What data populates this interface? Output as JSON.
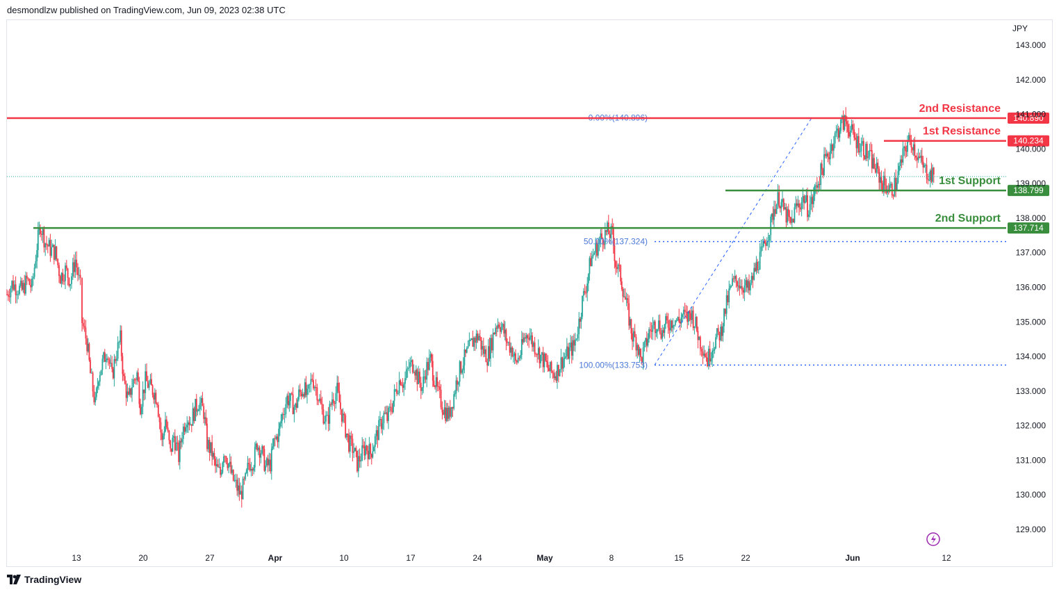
{
  "header": {
    "publish_line": "desmondlzw published on TradingView.com, Jun 09, 2023 02:38 UTC"
  },
  "footer": {
    "brand": "TradingView"
  },
  "chart_data": {
    "type": "candlestick",
    "currency": "JPY",
    "y_ticks": [
      "143.000",
      "142.000",
      "141.000",
      "140.000",
      "139.000",
      "138.000",
      "137.000",
      "136.000",
      "135.000",
      "134.000",
      "133.000",
      "132.000",
      "131.000",
      "130.000",
      "129.000"
    ],
    "x_ticks": [
      "13",
      "20",
      "27",
      "Apr",
      "10",
      "17",
      "24",
      "May",
      "8",
      "15",
      "22",
      "Jun",
      "12"
    ],
    "ylim": [
      128.5,
      143.6
    ],
    "levels": [
      {
        "label": "2nd Resistance",
        "price_tag": "140.890",
        "value": 140.89,
        "color": "#f23645"
      },
      {
        "label": "1st Resistance",
        "price_tag": "140.234",
        "value": 140.234,
        "color": "#f23645"
      },
      {
        "label": "1st Support",
        "price_tag": "138.799",
        "value": 138.799,
        "color": "#388e3c"
      },
      {
        "label": "2nd Support",
        "price_tag": "137.714",
        "value": 137.714,
        "color": "#388e3c"
      }
    ],
    "fibonacci": [
      {
        "label": "0.00%(140.896)",
        "value": 140.896
      },
      {
        "label": "50.00%(137.324)",
        "value": 137.324
      },
      {
        "label": "100.00%(133.753)",
        "value": 133.753
      }
    ],
    "last_price": 139.2,
    "colors": {
      "up": "#26a69a",
      "down": "#f23645",
      "fib": "#2962ff",
      "support": "#388e3c",
      "resistance": "#f23645"
    },
    "close_path": [
      [
        0,
        135.8
      ],
      [
        6,
        136.1
      ],
      [
        12,
        136.0
      ],
      [
        18,
        135.9
      ],
      [
        24,
        136.2
      ],
      [
        30,
        136.0
      ],
      [
        36,
        137.2
      ],
      [
        40,
        137.8
      ],
      [
        46,
        137.3
      ],
      [
        52,
        137.1
      ],
      [
        58,
        137.0
      ],
      [
        64,
        136.3
      ],
      [
        70,
        136.5
      ],
      [
        76,
        136.2
      ],
      [
        82,
        136.8
      ],
      [
        88,
        136.0
      ],
      [
        90,
        135.0
      ],
      [
        96,
        134.4
      ],
      [
        100,
        133.5
      ],
      [
        106,
        132.6
      ],
      [
        110,
        133.5
      ],
      [
        116,
        133.9
      ],
      [
        120,
        134.2
      ],
      [
        126,
        133.4
      ],
      [
        130,
        134.0
      ],
      [
        136,
        134.5
      ],
      [
        140,
        133.3
      ],
      [
        146,
        132.7
      ],
      [
        150,
        133.2
      ],
      [
        156,
        133.5
      ],
      [
        160,
        132.6
      ],
      [
        166,
        133.3
      ],
      [
        172,
        133.1
      ],
      [
        176,
        133.0
      ],
      [
        180,
        132.8
      ],
      [
        186,
        131.5
      ],
      [
        190,
        132.2
      ],
      [
        196,
        131.2
      ],
      [
        200,
        131.7
      ],
      [
        206,
        131.1
      ],
      [
        210,
        131.8
      ],
      [
        216,
        132.3
      ],
      [
        220,
        132.1
      ],
      [
        226,
        132.5
      ],
      [
        230,
        132.7
      ],
      [
        236,
        132.4
      ],
      [
        240,
        131.5
      ],
      [
        246,
        131.2
      ],
      [
        250,
        130.8
      ],
      [
        256,
        130.6
      ],
      [
        260,
        131.3
      ],
      [
        266,
        130.9
      ],
      [
        270,
        130.5
      ],
      [
        276,
        130.2
      ],
      [
        280,
        130.0
      ],
      [
        286,
        130.4
      ],
      [
        290,
        130.9
      ],
      [
        296,
        131.0
      ],
      [
        300,
        131.5
      ],
      [
        306,
        131.2
      ],
      [
        310,
        130.8
      ],
      [
        316,
        130.9
      ],
      [
        320,
        131.5
      ],
      [
        326,
        131.8
      ],
      [
        330,
        132.3
      ],
      [
        336,
        132.8
      ],
      [
        340,
        132.7
      ],
      [
        346,
        132.5
      ],
      [
        350,
        132.9
      ],
      [
        356,
        133.1
      ],
      [
        360,
        132.8
      ],
      [
        366,
        133.4
      ],
      [
        372,
        133.0
      ],
      [
        378,
        132.4
      ],
      [
        384,
        132.1
      ],
      [
        390,
        132.8
      ],
      [
        396,
        133.0
      ],
      [
        400,
        132.5
      ],
      [
        406,
        131.9
      ],
      [
        410,
        131.5
      ],
      [
        416,
        131.3
      ],
      [
        420,
        130.9
      ],
      [
        426,
        131.2
      ],
      [
        430,
        131.4
      ],
      [
        436,
        131.2
      ],
      [
        440,
        131.5
      ],
      [
        446,
        131.9
      ],
      [
        452,
        132.3
      ],
      [
        456,
        132.2
      ],
      [
        462,
        132.6
      ],
      [
        466,
        133.0
      ],
      [
        472,
        133.4
      ],
      [
        476,
        133.2
      ],
      [
        482,
        133.7
      ],
      [
        488,
        133.8
      ],
      [
        492,
        133.4
      ],
      [
        498,
        133.1
      ],
      [
        502,
        133.6
      ],
      [
        508,
        133.9
      ],
      [
        512,
        133.4
      ],
      [
        516,
        133.0
      ],
      [
        522,
        132.6
      ],
      [
        526,
        132.4
      ],
      [
        530,
        132.3
      ],
      [
        536,
        132.9
      ],
      [
        540,
        133.4
      ],
      [
        546,
        133.8
      ],
      [
        550,
        134.0
      ],
      [
        556,
        134.3
      ],
      [
        560,
        134.5
      ],
      [
        566,
        134.6
      ],
      [
        570,
        134.2
      ],
      [
        576,
        134.0
      ],
      [
        580,
        134.3
      ],
      [
        586,
        134.9
      ],
      [
        590,
        135.0
      ],
      [
        596,
        134.7
      ],
      [
        600,
        134.4
      ],
      [
        606,
        134.2
      ],
      [
        610,
        133.8
      ],
      [
        616,
        134.1
      ],
      [
        620,
        134.5
      ],
      [
        626,
        134.7
      ],
      [
        630,
        134.4
      ],
      [
        636,
        134.2
      ],
      [
        640,
        134.0
      ],
      [
        646,
        133.8
      ],
      [
        650,
        133.6
      ],
      [
        656,
        133.5
      ],
      [
        660,
        133.6
      ],
      [
        666,
        133.9
      ],
      [
        670,
        134.0
      ],
      [
        676,
        134.2
      ],
      [
        680,
        134.3
      ],
      [
        686,
        135.0
      ],
      [
        690,
        135.6
      ],
      [
        696,
        136.2
      ],
      [
        700,
        136.8
      ],
      [
        706,
        137.1
      ],
      [
        712,
        137.4
      ],
      [
        716,
        137.5
      ],
      [
        720,
        137.6
      ],
      [
        726,
        137.5
      ],
      [
        730,
        136.7
      ],
      [
        736,
        136.3
      ],
      [
        740,
        135.8
      ],
      [
        746,
        135.1
      ],
      [
        750,
        134.6
      ],
      [
        756,
        134.4
      ],
      [
        760,
        133.9
      ],
      [
        766,
        134.3
      ],
      [
        770,
        134.7
      ],
      [
        776,
        134.9
      ],
      [
        780,
        135.0
      ],
      [
        786,
        134.7
      ],
      [
        790,
        134.9
      ],
      [
        796,
        135.0
      ],
      [
        800,
        135.1
      ],
      [
        806,
        135.0
      ],
      [
        810,
        135.2
      ],
      [
        816,
        135.1
      ],
      [
        820,
        135.3
      ],
      [
        826,
        134.9
      ],
      [
        830,
        134.5
      ],
      [
        836,
        134.2
      ],
      [
        840,
        133.9
      ],
      [
        846,
        134.3
      ],
      [
        850,
        134.5
      ],
      [
        856,
        134.7
      ],
      [
        860,
        135.2
      ],
      [
        866,
        135.8
      ],
      [
        870,
        136.1
      ],
      [
        876,
        136.2
      ],
      [
        880,
        136.1
      ],
      [
        886,
        136.0
      ],
      [
        890,
        135.9
      ],
      [
        896,
        136.4
      ],
      [
        900,
        136.7
      ],
      [
        906,
        137.0
      ],
      [
        910,
        137.4
      ],
      [
        916,
        137.8
      ],
      [
        920,
        138.3
      ],
      [
        926,
        138.6
      ],
      [
        930,
        138.3
      ],
      [
        936,
        138.0
      ],
      [
        940,
        137.8
      ],
      [
        946,
        138.3
      ],
      [
        950,
        138.4
      ],
      [
        956,
        138.6
      ],
      [
        960,
        138.3
      ],
      [
        966,
        138.5
      ],
      [
        970,
        138.9
      ],
      [
        976,
        139.3
      ],
      [
        980,
        139.6
      ],
      [
        986,
        139.9
      ],
      [
        990,
        140.2
      ],
      [
        996,
        140.5
      ],
      [
        1000,
        140.7
      ],
      [
        1006,
        140.8
      ],
      [
        1010,
        140.6
      ],
      [
        1016,
        140.3
      ],
      [
        1020,
        140.2
      ],
      [
        1026,
        140.1
      ],
      [
        1030,
        139.9
      ],
      [
        1036,
        139.7
      ],
      [
        1040,
        139.5
      ],
      [
        1046,
        139.2
      ],
      [
        1050,
        139.0
      ],
      [
        1056,
        138.9
      ],
      [
        1060,
        138.8
      ],
      [
        1066,
        139.0
      ],
      [
        1070,
        139.4
      ],
      [
        1076,
        139.9
      ],
      [
        1080,
        140.2
      ],
      [
        1086,
        140.2
      ],
      [
        1090,
        139.9
      ],
      [
        1096,
        139.6
      ],
      [
        1100,
        139.4
      ],
      [
        1106,
        139.3
      ],
      [
        1110,
        139.2
      ],
      [
        1116,
        139.4
      ],
      [
        1120,
        139.0
      ],
      [
        1126,
        139.7
      ],
      [
        1130,
        140.1
      ],
      [
        1136,
        140.0
      ],
      [
        1140,
        139.6
      ],
      [
        1146,
        139.3
      ],
      [
        1150,
        138.9
      ],
      [
        1156,
        138.8
      ],
      [
        1160,
        139.0
      ],
      [
        1166,
        139.2
      ]
    ]
  }
}
